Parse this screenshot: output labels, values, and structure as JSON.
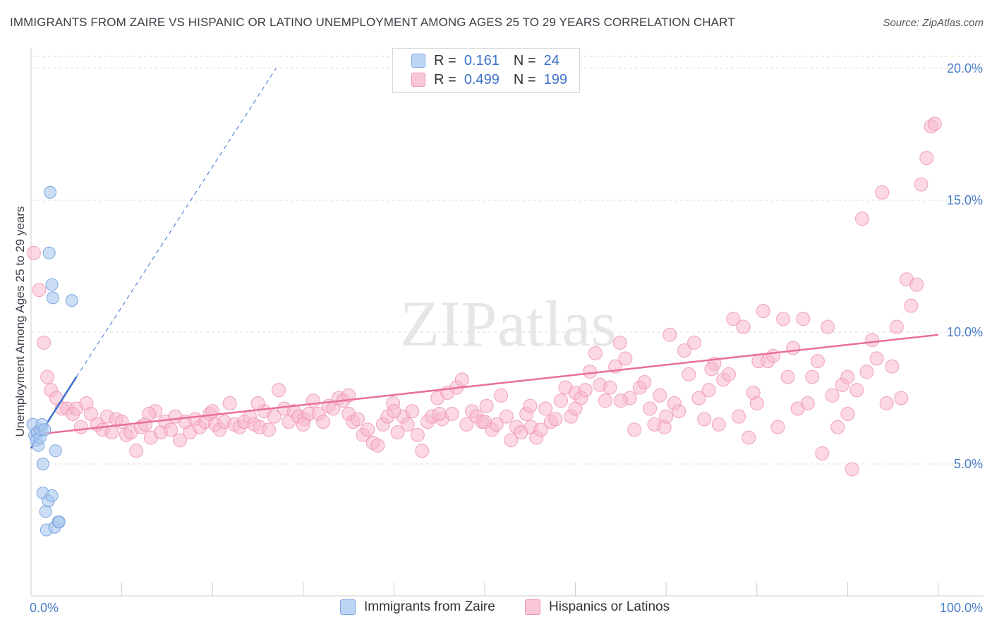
{
  "title": "IMMIGRANTS FROM ZAIRE VS HISPANIC OR LATINO UNEMPLOYMENT AMONG AGES 25 TO 29 YEARS CORRELATION CHART",
  "source": "Source: ZipAtlas.com",
  "watermark": "ZIPatlas",
  "colors": {
    "blue_fill": "#a9c8f0",
    "blue_stroke": "#7ea6e0",
    "blue_line": "#3a6fd0",
    "pink_fill": "#f7b8cc",
    "pink_stroke": "#ee8fae",
    "pink_line": "#e96f9a",
    "grid": "#dddddd",
    "tick_text": "#4a7cc9"
  },
  "legend": {
    "rows": [
      {
        "r_label": "R =",
        "r_value": "0.161",
        "n_label": "N =",
        "n_value": "24"
      },
      {
        "r_label": "R =",
        "r_value": "0.499",
        "n_label": "N =",
        "n_value": "199"
      }
    ]
  },
  "bottom_legend": [
    "Immigrants from Zaire",
    "Hispanics or Latinos"
  ],
  "chart_data": {
    "type": "scatter",
    "ylabel": "Unemployment Among Ages 25 to 29 years",
    "xlim": [
      0,
      100
    ],
    "ylim": [
      0,
      20
    ],
    "x_tick_labels": [
      "0.0%",
      "100.0%"
    ],
    "y_ticks": [
      5,
      10,
      15,
      20
    ],
    "y_tick_labels": [
      "5.0%",
      "10.0%",
      "15.0%",
      "20.0%"
    ],
    "series": [
      {
        "name": "Immigrants from Zaire",
        "R": 0.161,
        "N": 24,
        "trend": {
          "x0": 0,
          "y0": 5.6,
          "x1": 5.0,
          "y1": 8.3,
          "dashed_to_x": 27,
          "dashed_to_y": 20
        },
        "points": [
          [
            0.2,
            6.5
          ],
          [
            0.4,
            6.1
          ],
          [
            0.6,
            5.9
          ],
          [
            0.7,
            6.2
          ],
          [
            0.8,
            5.7
          ],
          [
            1.0,
            6.0
          ],
          [
            1.1,
            6.3
          ],
          [
            1.2,
            6.5
          ],
          [
            1.3,
            5.0
          ],
          [
            1.3,
            3.9
          ],
          [
            1.6,
            3.2
          ],
          [
            1.7,
            2.5
          ],
          [
            1.9,
            3.6
          ],
          [
            2.1,
            15.3
          ],
          [
            2.0,
            13.0
          ],
          [
            2.3,
            11.8
          ],
          [
            2.4,
            11.3
          ],
          [
            2.3,
            3.8
          ],
          [
            2.7,
            5.5
          ],
          [
            2.6,
            2.6
          ],
          [
            3.0,
            2.8
          ],
          [
            3.1,
            2.8
          ],
          [
            4.5,
            11.2
          ],
          [
            1.5,
            6.3
          ]
        ]
      },
      {
        "name": "Hispanics or Latinos",
        "R": 0.499,
        "N": 199,
        "trend": {
          "x0": 0,
          "y0": 6.1,
          "x1": 100,
          "y1": 9.9
        },
        "points": [
          [
            0.3,
            13.0
          ],
          [
            0.9,
            11.6
          ],
          [
            1.4,
            9.6
          ],
          [
            1.8,
            8.3
          ],
          [
            2.2,
            7.8
          ],
          [
            2.8,
            7.5
          ],
          [
            3.4,
            7.1
          ],
          [
            4.0,
            7.1
          ],
          [
            4.6,
            6.9
          ],
          [
            5.0,
            7.1
          ],
          [
            5.5,
            6.4
          ],
          [
            6.1,
            7.3
          ],
          [
            6.6,
            6.9
          ],
          [
            7.3,
            6.5
          ],
          [
            7.9,
            6.3
          ],
          [
            8.4,
            6.8
          ],
          [
            8.9,
            6.2
          ],
          [
            9.4,
            6.7
          ],
          [
            10.0,
            6.6
          ],
          [
            10.5,
            6.1
          ],
          [
            11.0,
            6.2
          ],
          [
            11.6,
            5.5
          ],
          [
            12.1,
            6.4
          ],
          [
            12.6,
            6.5
          ],
          [
            13.2,
            6.0
          ],
          [
            13.7,
            7.0
          ],
          [
            14.3,
            6.2
          ],
          [
            14.8,
            6.6
          ],
          [
            15.4,
            6.3
          ],
          [
            15.9,
            6.8
          ],
          [
            16.4,
            5.9
          ],
          [
            17.0,
            6.6
          ],
          [
            17.5,
            6.2
          ],
          [
            18.1,
            6.7
          ],
          [
            18.6,
            6.4
          ],
          [
            19.2,
            6.6
          ],
          [
            19.7,
            6.9
          ],
          [
            20.3,
            6.5
          ],
          [
            20.8,
            6.3
          ],
          [
            21.3,
            6.6
          ],
          [
            21.9,
            7.3
          ],
          [
            22.4,
            6.5
          ],
          [
            23.0,
            6.4
          ],
          [
            23.5,
            6.6
          ],
          [
            24.1,
            6.8
          ],
          [
            24.6,
            6.5
          ],
          [
            25.2,
            6.4
          ],
          [
            25.7,
            7.0
          ],
          [
            26.2,
            6.3
          ],
          [
            26.8,
            6.8
          ],
          [
            27.3,
            7.8
          ],
          [
            27.9,
            7.1
          ],
          [
            28.4,
            6.6
          ],
          [
            29.0,
            7.0
          ],
          [
            29.5,
            6.8
          ],
          [
            30.1,
            6.7
          ],
          [
            30.6,
            6.9
          ],
          [
            31.1,
            7.4
          ],
          [
            31.7,
            6.9
          ],
          [
            32.2,
            6.6
          ],
          [
            32.8,
            7.2
          ],
          [
            33.3,
            7.1
          ],
          [
            33.9,
            7.5
          ],
          [
            34.4,
            7.4
          ],
          [
            35.0,
            6.9
          ],
          [
            35.5,
            6.6
          ],
          [
            36.0,
            6.7
          ],
          [
            36.6,
            6.1
          ],
          [
            37.1,
            6.3
          ],
          [
            37.7,
            5.8
          ],
          [
            38.2,
            5.7
          ],
          [
            38.8,
            6.5
          ],
          [
            39.3,
            6.8
          ],
          [
            39.9,
            7.3
          ],
          [
            40.4,
            6.2
          ],
          [
            41.0,
            6.8
          ],
          [
            41.5,
            6.5
          ],
          [
            42.0,
            7.0
          ],
          [
            42.6,
            6.1
          ],
          [
            43.1,
            5.5
          ],
          [
            43.7,
            6.6
          ],
          [
            44.2,
            6.8
          ],
          [
            44.8,
            7.5
          ],
          [
            45.3,
            6.7
          ],
          [
            45.9,
            7.7
          ],
          [
            46.4,
            6.9
          ],
          [
            46.9,
            7.9
          ],
          [
            47.5,
            8.2
          ],
          [
            48.0,
            6.5
          ],
          [
            48.6,
            7.0
          ],
          [
            49.1,
            6.8
          ],
          [
            49.7,
            6.6
          ],
          [
            50.2,
            7.2
          ],
          [
            50.8,
            6.3
          ],
          [
            51.3,
            6.5
          ],
          [
            51.8,
            7.6
          ],
          [
            52.4,
            6.8
          ],
          [
            52.9,
            5.9
          ],
          [
            53.5,
            6.4
          ],
          [
            54.0,
            6.2
          ],
          [
            54.6,
            6.9
          ],
          [
            55.1,
            6.4
          ],
          [
            55.7,
            6.0
          ],
          [
            56.2,
            6.3
          ],
          [
            56.7,
            7.1
          ],
          [
            57.3,
            6.6
          ],
          [
            57.8,
            6.7
          ],
          [
            58.4,
            7.4
          ],
          [
            58.9,
            7.9
          ],
          [
            59.5,
            6.8
          ],
          [
            60.0,
            7.7
          ],
          [
            60.6,
            7.5
          ],
          [
            61.1,
            7.8
          ],
          [
            61.6,
            8.5
          ],
          [
            62.2,
            9.2
          ],
          [
            62.7,
            8.0
          ],
          [
            63.3,
            7.4
          ],
          [
            63.8,
            7.9
          ],
          [
            64.4,
            8.7
          ],
          [
            64.9,
            9.6
          ],
          [
            65.5,
            9.0
          ],
          [
            66.0,
            7.5
          ],
          [
            66.5,
            6.3
          ],
          [
            67.1,
            7.9
          ],
          [
            67.6,
            8.1
          ],
          [
            68.2,
            7.1
          ],
          [
            68.7,
            6.5
          ],
          [
            69.3,
            7.6
          ],
          [
            69.8,
            6.4
          ],
          [
            70.4,
            9.9
          ],
          [
            70.9,
            7.3
          ],
          [
            71.4,
            7.0
          ],
          [
            72.0,
            9.3
          ],
          [
            72.5,
            8.4
          ],
          [
            73.1,
            9.6
          ],
          [
            73.6,
            7.5
          ],
          [
            74.2,
            6.7
          ],
          [
            74.7,
            7.8
          ],
          [
            75.3,
            8.8
          ],
          [
            75.8,
            6.5
          ],
          [
            76.3,
            8.2
          ],
          [
            76.9,
            8.4
          ],
          [
            77.4,
            10.5
          ],
          [
            78.0,
            6.8
          ],
          [
            78.5,
            10.2
          ],
          [
            79.1,
            6.0
          ],
          [
            79.6,
            7.7
          ],
          [
            80.2,
            8.9
          ],
          [
            80.7,
            10.8
          ],
          [
            81.2,
            8.9
          ],
          [
            81.8,
            9.1
          ],
          [
            82.3,
            6.4
          ],
          [
            82.9,
            10.5
          ],
          [
            83.4,
            8.3
          ],
          [
            84.0,
            9.4
          ],
          [
            84.5,
            7.1
          ],
          [
            85.1,
            10.5
          ],
          [
            85.6,
            7.3
          ],
          [
            86.1,
            8.3
          ],
          [
            86.7,
            8.9
          ],
          [
            87.2,
            5.4
          ],
          [
            87.8,
            10.2
          ],
          [
            88.3,
            7.6
          ],
          [
            88.9,
            6.4
          ],
          [
            89.4,
            8.0
          ],
          [
            90.0,
            8.3
          ],
          [
            90.5,
            4.8
          ],
          [
            91.0,
            7.8
          ],
          [
            91.6,
            14.3
          ],
          [
            92.1,
            8.5
          ],
          [
            92.7,
            9.7
          ],
          [
            93.2,
            9.0
          ],
          [
            93.8,
            15.3
          ],
          [
            94.3,
            7.3
          ],
          [
            94.9,
            8.7
          ],
          [
            95.4,
            10.2
          ],
          [
            95.9,
            7.5
          ],
          [
            96.5,
            12.0
          ],
          [
            97.0,
            11.0
          ],
          [
            97.6,
            11.8
          ],
          [
            98.1,
            15.6
          ],
          [
            98.7,
            16.6
          ],
          [
            99.2,
            17.8
          ],
          [
            99.6,
            17.9
          ],
          [
            13.0,
            6.9
          ],
          [
            20.0,
            7.0
          ],
          [
            30.0,
            6.5
          ],
          [
            40.0,
            7.0
          ],
          [
            50.0,
            6.6
          ],
          [
            60.0,
            7.1
          ],
          [
            70.0,
            6.8
          ],
          [
            80.0,
            7.3
          ],
          [
            90.0,
            6.9
          ],
          [
            25.0,
            7.3
          ],
          [
            35.0,
            7.6
          ],
          [
            45.0,
            6.9
          ],
          [
            55.0,
            7.2
          ],
          [
            65.0,
            7.4
          ],
          [
            75.0,
            8.6
          ]
        ]
      }
    ]
  }
}
